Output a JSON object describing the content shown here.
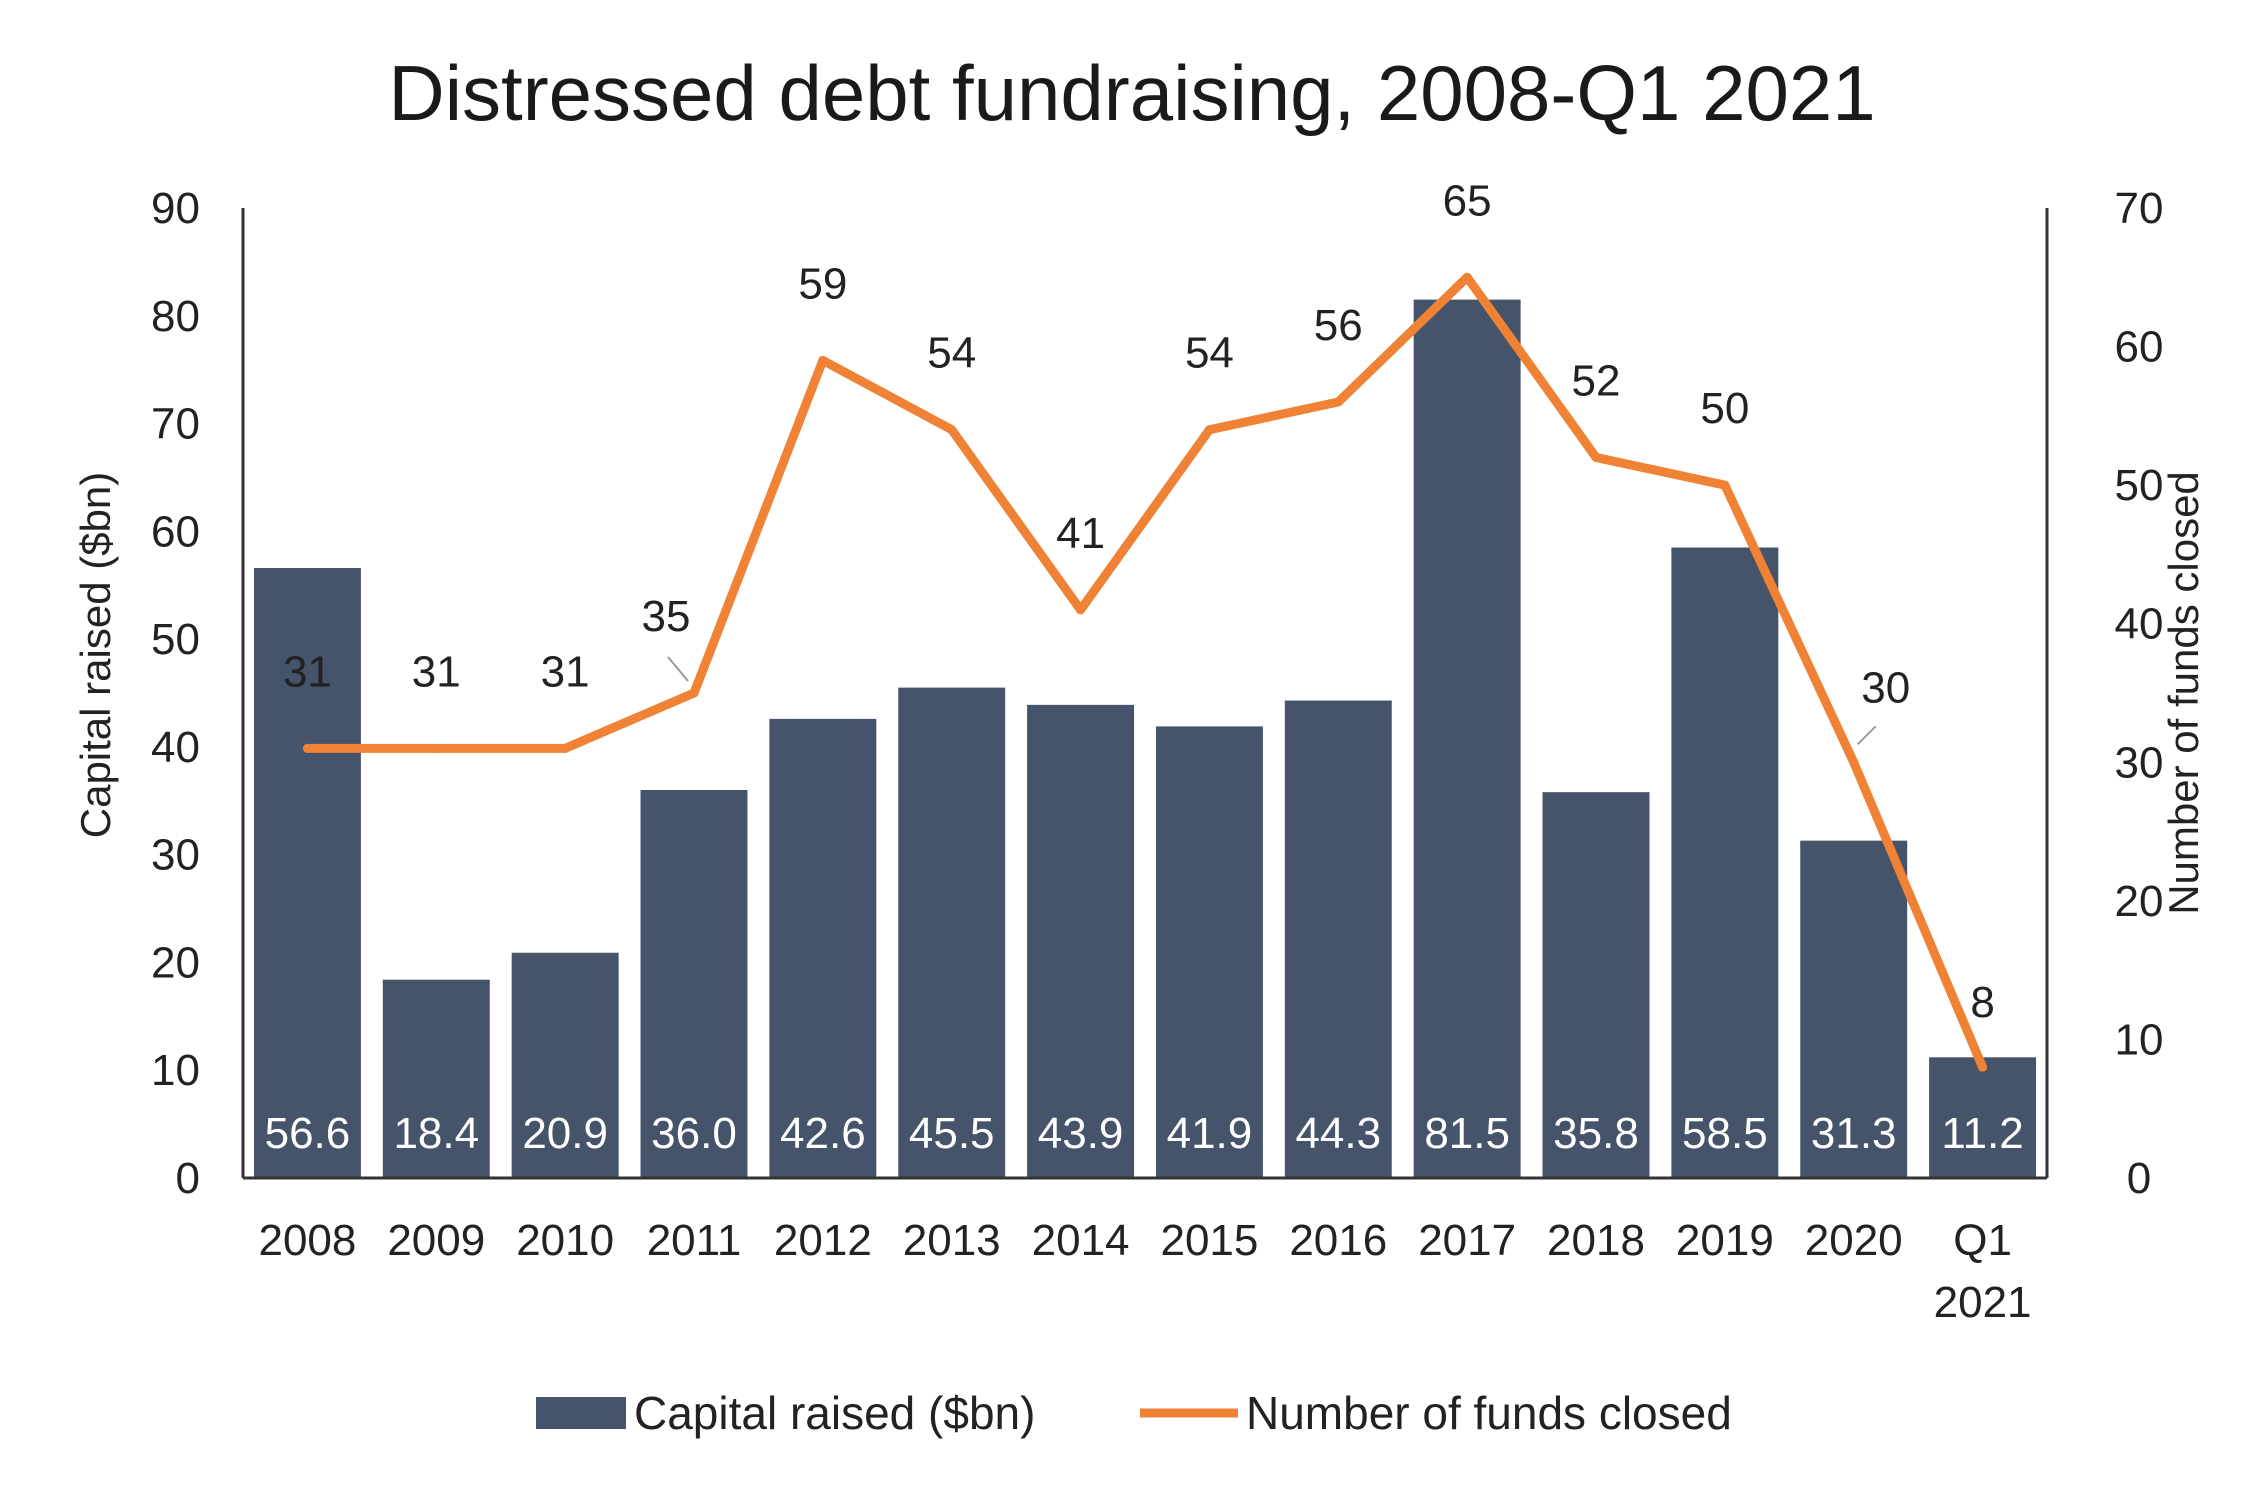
{
  "chart_data": {
    "type": "bar",
    "title": "Distressed debt fundraising, 2008-Q1 2021",
    "categories": [
      [
        "2008"
      ],
      [
        "2009"
      ],
      [
        "2010"
      ],
      [
        "2011"
      ],
      [
        "2012"
      ],
      [
        "2013"
      ],
      [
        "2014"
      ],
      [
        "2015"
      ],
      [
        "2016"
      ],
      [
        "2017"
      ],
      [
        "2018"
      ],
      [
        "2019"
      ],
      [
        "2020"
      ],
      [
        "Q1",
        "2021"
      ]
    ],
    "series": [
      {
        "name": "Capital raised ($bn)",
        "type": "bar",
        "axis": "left",
        "color": "#45546b",
        "values": [
          56.6,
          18.4,
          20.9,
          36.0,
          42.6,
          45.5,
          43.9,
          41.9,
          44.3,
          81.5,
          35.8,
          58.5,
          31.3,
          11.2
        ],
        "labels": [
          "56.6",
          "18.4",
          "20.9",
          "36.0",
          "42.6",
          "45.5",
          "43.9",
          "41.9",
          "44.3",
          "81.5",
          "35.8",
          "58.5",
          "31.3",
          "11.2"
        ]
      },
      {
        "name": "Number of funds closed",
        "type": "line",
        "axis": "right",
        "color": "#ef8234",
        "values": [
          31,
          31,
          31,
          35,
          59,
          54,
          41,
          54,
          56,
          65,
          52,
          50,
          30,
          8
        ],
        "labels": [
          "31",
          "31",
          "31",
          "35",
          "59",
          "54",
          "41",
          "54",
          "56",
          "65",
          "52",
          "50",
          "30",
          "8"
        ]
      }
    ],
    "ylabel": "Capital raised ($bn)",
    "ylim": [
      0,
      90
    ],
    "yticks": [
      "0",
      "10",
      "20",
      "30",
      "40",
      "50",
      "60",
      "70",
      "80",
      "90"
    ],
    "y2label": "Number of funds closed",
    "y2lim": [
      0,
      70
    ],
    "y2ticks": [
      "0",
      "10",
      "20",
      "30",
      "40",
      "50",
      "60",
      "70"
    ],
    "grid": false,
    "legend": "bottom"
  }
}
